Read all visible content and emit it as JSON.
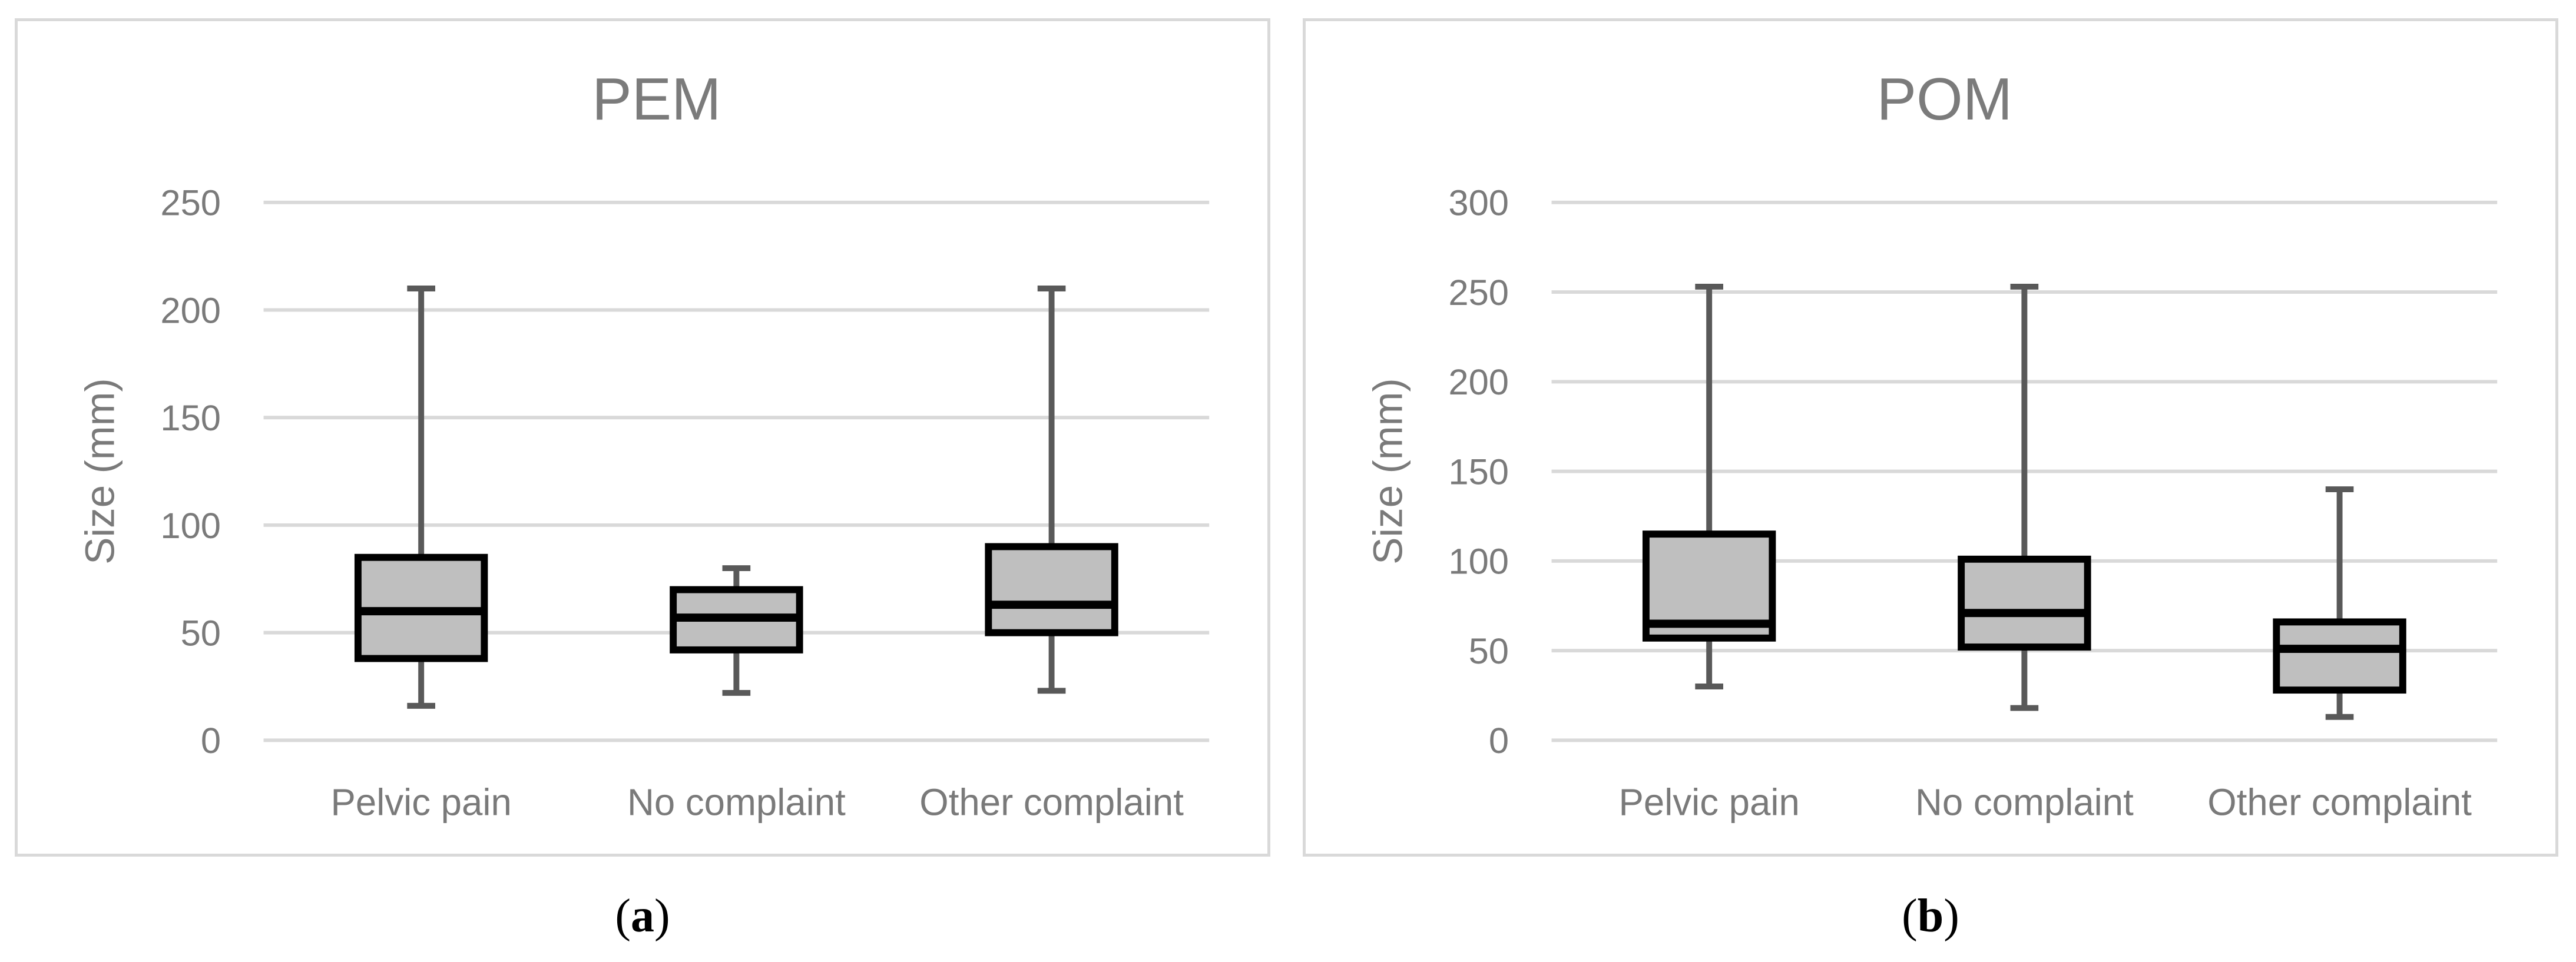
{
  "figure": {
    "panels": [
      {
        "caption": "(a)"
      },
      {
        "caption": "(b)"
      }
    ],
    "theme": {
      "background": "#ffffff",
      "panel_border": "#d9d9d9",
      "gridline": "#d9d9d9",
      "axis_text": "#7a7a7a",
      "title_text": "#7b7b7b",
      "box_fill": "#bfbfbf",
      "box_border": "#000000",
      "median_line": "#000000",
      "whisker": "#595959",
      "caption_text": "#000000"
    }
  },
  "chart_data": [
    {
      "type": "box",
      "title": "PEM",
      "xlabel": "",
      "ylabel": "Size (mm)",
      "ylim": [
        0,
        250
      ],
      "yticks": [
        0,
        50,
        100,
        150,
        200,
        250
      ],
      "grid": true,
      "legend": false,
      "categories": [
        "Pelvic pain",
        "No complaint",
        "Other complaint"
      ],
      "boxes": [
        {
          "category": "Pelvic pain",
          "min": 16,
          "q1": 38,
          "median": 60,
          "q3": 85,
          "max": 210
        },
        {
          "category": "No complaint",
          "min": 22,
          "q1": 42,
          "median": 57,
          "q3": 70,
          "max": 80
        },
        {
          "category": "Other complaint",
          "min": 23,
          "q1": 50,
          "median": 63,
          "q3": 90,
          "max": 210
        }
      ]
    },
    {
      "type": "box",
      "title": "POM",
      "xlabel": "",
      "ylabel": "Size (mm)",
      "ylim": [
        0,
        300
      ],
      "yticks": [
        0,
        50,
        100,
        150,
        200,
        250,
        300
      ],
      "grid": true,
      "legend": false,
      "categories": [
        "Pelvic pain",
        "No complaint",
        "Other complaint"
      ],
      "boxes": [
        {
          "category": "Pelvic pain",
          "min": 30,
          "q1": 57,
          "median": 65,
          "q3": 115,
          "max": 253
        },
        {
          "category": "No complaint",
          "min": 18,
          "q1": 52,
          "median": 71,
          "q3": 101,
          "max": 253
        },
        {
          "category": "Other complaint",
          "min": 13,
          "q1": 28,
          "median": 51,
          "q3": 66,
          "max": 140
        }
      ]
    }
  ]
}
